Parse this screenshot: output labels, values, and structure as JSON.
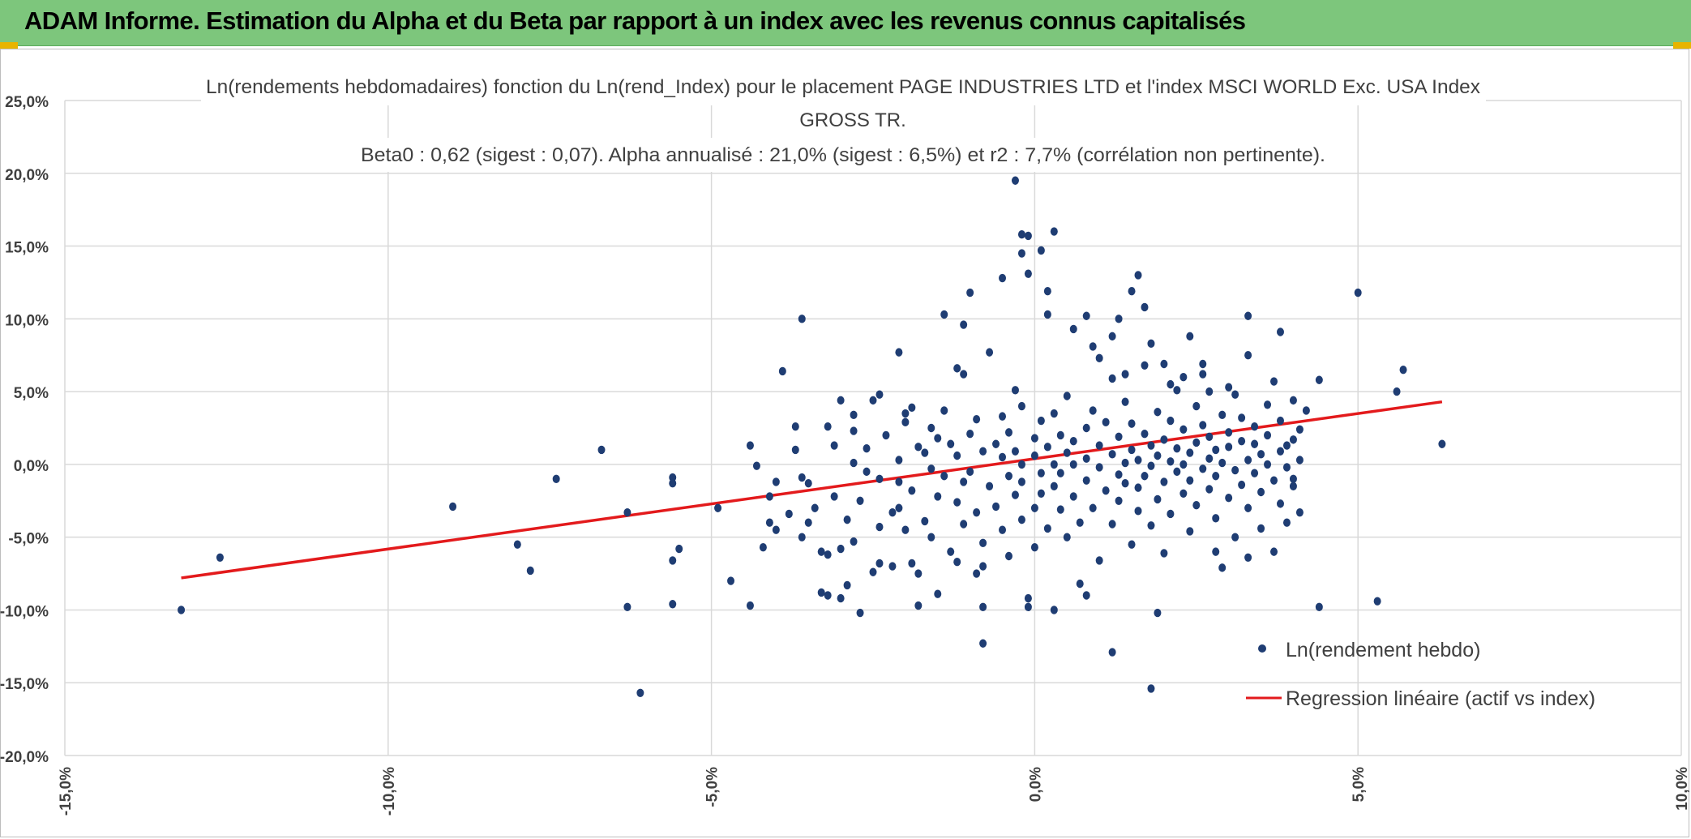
{
  "header": {
    "title": "ADAM Informe. Estimation du Alpha et du Beta par rapport à un index avec les revenus connus capitalisés"
  },
  "colors": {
    "header_bg": "#7dc67c",
    "point": "#1f3d73",
    "regression": "#e31a1c",
    "grid": "#d9d9d9",
    "accent": "#e8b400"
  },
  "chart_data": {
    "type": "scatter",
    "title_lines": [
      "Ln(rendements hebdomadaires) fonction du Ln(rend_Index) pour le placement PAGE INDUSTRIES LTD et l'index MSCI WORLD Exc. USA Index",
      "GROSS TR.",
      "Beta0 : 0,62 (sigest : 0,07). Alpha annualisé : 21,0% (sigest : 6,5%) et r2 : 7,7% (corrélation non pertinente)."
    ],
    "xlim": [
      -0.15,
      0.1
    ],
    "ylim": [
      -0.2,
      0.25
    ],
    "x_ticks": [
      "-15,0%",
      "-10,0%",
      "-5,0%",
      "0,0%",
      "5,0%",
      "10,0%"
    ],
    "y_ticks": [
      "25,0%",
      "20,0%",
      "15,0%",
      "10,0%",
      "5,0%",
      "0,0%",
      "-5,0%",
      "-10,0%",
      "-15,0%",
      "-20,0%"
    ],
    "grid": true,
    "legend_position": "bottom-right",
    "series": [
      {
        "name": "Ln(rendement hebdo)",
        "kind": "points",
        "points": [
          [
            -0.132,
            -0.1
          ],
          [
            -0.126,
            -0.064
          ],
          [
            -0.09,
            -0.029
          ],
          [
            -0.08,
            -0.055
          ],
          [
            -0.078,
            -0.073
          ],
          [
            -0.074,
            -0.01
          ],
          [
            -0.067,
            0.01
          ],
          [
            -0.063,
            -0.033
          ],
          [
            -0.063,
            -0.098
          ],
          [
            -0.061,
            -0.157
          ],
          [
            -0.056,
            -0.009
          ],
          [
            -0.056,
            -0.013
          ],
          [
            -0.056,
            -0.066
          ],
          [
            -0.056,
            -0.096
          ],
          [
            -0.055,
            -0.058
          ],
          [
            -0.049,
            -0.03
          ],
          [
            -0.047,
            -0.08
          ],
          [
            -0.044,
            -0.097
          ],
          [
            -0.044,
            0.013
          ],
          [
            -0.043,
            -0.001
          ],
          [
            -0.042,
            -0.057
          ],
          [
            -0.041,
            -0.04
          ],
          [
            -0.04,
            -0.045
          ],
          [
            -0.041,
            -0.022
          ],
          [
            -0.04,
            -0.012
          ],
          [
            -0.039,
            0.064
          ],
          [
            -0.038,
            -0.034
          ],
          [
            -0.037,
            0.01
          ],
          [
            -0.036,
            -0.009
          ],
          [
            -0.036,
            -0.05
          ],
          [
            -0.036,
            0.1
          ],
          [
            -0.035,
            -0.013
          ],
          [
            -0.035,
            -0.04
          ],
          [
            -0.034,
            -0.03
          ],
          [
            -0.033,
            -0.06
          ],
          [
            -0.033,
            -0.088
          ],
          [
            -0.032,
            0.026
          ],
          [
            -0.032,
            -0.062
          ],
          [
            -0.031,
            -0.022
          ],
          [
            -0.031,
            0.013
          ],
          [
            -0.03,
            -0.092
          ],
          [
            -0.03,
            -0.058
          ],
          [
            -0.029,
            -0.038
          ],
          [
            -0.028,
            0.001
          ],
          [
            -0.028,
            -0.053
          ],
          [
            -0.028,
            0.023
          ],
          [
            -0.027,
            -0.025
          ],
          [
            -0.027,
            -0.102
          ],
          [
            -0.026,
            0.011
          ],
          [
            -0.026,
            -0.005
          ],
          [
            -0.025,
            0.044
          ],
          [
            -0.024,
            -0.043
          ],
          [
            -0.024,
            -0.01
          ],
          [
            -0.024,
            -0.068
          ],
          [
            -0.023,
            0.02
          ],
          [
            -0.022,
            -0.033
          ],
          [
            -0.021,
            -0.012
          ],
          [
            -0.021,
            0.003
          ],
          [
            -0.021,
            -0.03
          ],
          [
            -0.02,
            0.029
          ],
          [
            -0.02,
            -0.045
          ],
          [
            -0.02,
            0.035
          ],
          [
            -0.019,
            -0.018
          ],
          [
            -0.019,
            0.039
          ],
          [
            -0.018,
            0.012
          ],
          [
            -0.018,
            -0.075
          ],
          [
            -0.017,
            -0.039
          ],
          [
            -0.017,
            0.008
          ],
          [
            -0.016,
            -0.003
          ],
          [
            -0.016,
            -0.05
          ],
          [
            -0.016,
            0.025
          ],
          [
            -0.015,
            0.018
          ],
          [
            -0.015,
            -0.022
          ],
          [
            -0.014,
            0.037
          ],
          [
            -0.014,
            -0.008
          ],
          [
            -0.013,
            0.014
          ],
          [
            -0.013,
            -0.06
          ],
          [
            -0.012,
            -0.026
          ],
          [
            -0.012,
            0.006
          ],
          [
            -0.012,
            0.066
          ],
          [
            -0.011,
            0.062
          ],
          [
            -0.011,
            -0.041
          ],
          [
            -0.011,
            -0.012
          ],
          [
            -0.01,
            0.021
          ],
          [
            -0.01,
            -0.005
          ],
          [
            -0.009,
            -0.033
          ],
          [
            -0.009,
            0.031
          ],
          [
            -0.008,
            -0.054
          ],
          [
            -0.008,
            0.009
          ],
          [
            -0.008,
            -0.07
          ],
          [
            -0.008,
            -0.098
          ],
          [
            -0.007,
            0.077
          ],
          [
            -0.007,
            -0.015
          ],
          [
            -0.006,
            0.014
          ],
          [
            -0.006,
            -0.029
          ],
          [
            -0.005,
            0.005
          ],
          [
            -0.005,
            -0.045
          ],
          [
            -0.005,
            0.033
          ],
          [
            -0.004,
            -0.063
          ],
          [
            -0.004,
            -0.008
          ],
          [
            -0.004,
            0.022
          ],
          [
            -0.003,
            -0.021
          ],
          [
            -0.003,
            0.009
          ],
          [
            -0.003,
            0.051
          ],
          [
            -0.002,
            -0.038
          ],
          [
            -0.002,
            0.0
          ],
          [
            -0.002,
            -0.012
          ],
          [
            -0.002,
            0.04
          ],
          [
            -0.001,
            -0.092
          ],
          [
            -0.001,
            -0.098
          ],
          [
            0.0,
            0.018
          ],
          [
            0.0,
            -0.03
          ],
          [
            0.0,
            0.006
          ],
          [
            0.0,
            -0.057
          ],
          [
            0.001,
            0.03
          ],
          [
            0.001,
            -0.006
          ],
          [
            0.001,
            -0.02
          ],
          [
            0.002,
            0.012
          ],
          [
            0.002,
            0.103
          ],
          [
            0.002,
            -0.044
          ],
          [
            0.003,
            0.0
          ],
          [
            0.003,
            0.035
          ],
          [
            0.003,
            -0.015
          ],
          [
            0.004,
            -0.031
          ],
          [
            0.004,
            0.02
          ],
          [
            0.004,
            -0.006
          ],
          [
            0.005,
            0.008
          ],
          [
            0.005,
            -0.05
          ],
          [
            0.005,
            0.047
          ],
          [
            0.006,
            0.016
          ],
          [
            0.006,
            -0.022
          ],
          [
            0.006,
            0.0
          ],
          [
            0.007,
            -0.04
          ],
          [
            0.007,
            -0.082
          ],
          [
            0.008,
            0.025
          ],
          [
            0.008,
            0.004
          ],
          [
            0.008,
            -0.011
          ],
          [
            0.009,
            0.037
          ],
          [
            0.009,
            -0.03
          ],
          [
            0.01,
            0.013
          ],
          [
            0.01,
            -0.002
          ],
          [
            0.01,
            -0.066
          ],
          [
            0.011,
            -0.018
          ],
          [
            0.011,
            0.029
          ],
          [
            0.012,
            0.007
          ],
          [
            0.012,
            -0.041
          ],
          [
            0.012,
            0.059
          ],
          [
            0.013,
            0.019
          ],
          [
            0.013,
            -0.007
          ],
          [
            0.013,
            -0.025
          ],
          [
            0.014,
            0.001
          ],
          [
            0.014,
            0.043
          ],
          [
            0.014,
            -0.013
          ],
          [
            0.015,
            -0.055
          ],
          [
            0.015,
            0.01
          ],
          [
            0.015,
            0.028
          ],
          [
            0.016,
            -0.032
          ],
          [
            0.016,
            0.003
          ],
          [
            0.016,
            -0.016
          ],
          [
            0.017,
            0.021
          ],
          [
            0.017,
            -0.008
          ],
          [
            0.017,
            0.068
          ],
          [
            0.018,
            -0.042
          ],
          [
            0.018,
            0.013
          ],
          [
            0.018,
            -0.001
          ],
          [
            0.019,
            -0.024
          ],
          [
            0.019,
            0.036
          ],
          [
            0.019,
            0.006
          ],
          [
            0.02,
            -0.012
          ],
          [
            0.02,
            0.017
          ],
          [
            0.02,
            -0.061
          ],
          [
            0.021,
            0.002
          ],
          [
            0.021,
            0.03
          ],
          [
            0.021,
            -0.034
          ],
          [
            0.022,
            -0.005
          ],
          [
            0.022,
            0.011
          ],
          [
            0.022,
            0.051
          ],
          [
            0.023,
            -0.02
          ],
          [
            0.023,
            0.024
          ],
          [
            0.023,
            0.0
          ],
          [
            0.024,
            -0.046
          ],
          [
            0.024,
            0.008
          ],
          [
            0.024,
            -0.011
          ],
          [
            0.025,
            0.04
          ],
          [
            0.025,
            0.015
          ],
          [
            0.025,
            -0.028
          ],
          [
            0.026,
            -0.003
          ],
          [
            0.026,
            0.027
          ],
          [
            0.026,
            0.062
          ],
          [
            0.027,
            0.004
          ],
          [
            0.027,
            -0.017
          ],
          [
            0.027,
            0.019
          ],
          [
            0.028,
            -0.037
          ],
          [
            0.028,
            0.01
          ],
          [
            0.028,
            -0.008
          ],
          [
            0.029,
            0.034
          ],
          [
            0.029,
            -0.071
          ],
          [
            0.029,
            0.001
          ],
          [
            0.03,
            0.022
          ],
          [
            0.03,
            -0.023
          ],
          [
            0.03,
            0.012
          ],
          [
            0.031,
            -0.004
          ],
          [
            0.031,
            0.048
          ],
          [
            0.031,
            -0.05
          ],
          [
            0.032,
            0.016
          ],
          [
            0.032,
            -0.014
          ],
          [
            0.032,
            0.032
          ],
          [
            0.033,
            0.003
          ],
          [
            0.033,
            -0.03
          ],
          [
            0.033,
            0.075
          ],
          [
            0.034,
            0.014
          ],
          [
            0.034,
            -0.006
          ],
          [
            0.034,
            0.026
          ],
          [
            0.035,
            -0.044
          ],
          [
            0.035,
            0.007
          ],
          [
            0.035,
            -0.019
          ],
          [
            0.036,
            0.041
          ],
          [
            0.036,
            0.0
          ],
          [
            0.036,
            0.02
          ],
          [
            0.037,
            -0.011
          ],
          [
            0.037,
            0.057
          ],
          [
            0.037,
            -0.06
          ],
          [
            0.038,
            0.009
          ],
          [
            0.038,
            -0.027
          ],
          [
            0.038,
            0.03
          ],
          [
            0.039,
            -0.002
          ],
          [
            0.039,
            0.013
          ],
          [
            0.039,
            -0.04
          ],
          [
            0.04,
            0.044
          ],
          [
            0.04,
            0.017
          ],
          [
            0.04,
            -0.015
          ],
          [
            0.041,
            0.003
          ],
          [
            0.041,
            0.024
          ],
          [
            0.041,
            -0.033
          ],
          [
            -0.002,
            0.158
          ],
          [
            -0.001,
            0.157
          ],
          [
            0.001,
            0.147
          ],
          [
            0.002,
            0.119
          ],
          [
            -0.001,
            0.131
          ],
          [
            0.003,
            0.16
          ],
          [
            0.008,
            0.102
          ],
          [
            0.006,
            0.093
          ],
          [
            0.012,
            0.088
          ],
          [
            0.013,
            0.1
          ],
          [
            0.015,
            0.119
          ],
          [
            0.016,
            0.13
          ],
          [
            0.017,
            0.108
          ],
          [
            0.02,
            0.069
          ],
          [
            0.021,
            0.055
          ],
          [
            0.024,
            0.088
          ],
          [
            0.026,
            0.069
          ],
          [
            0.033,
            0.102
          ],
          [
            0.038,
            0.091
          ],
          [
            0.042,
            0.037
          ],
          [
            0.044,
            0.058
          ],
          [
            0.05,
            0.118
          ],
          [
            0.057,
            0.065
          ],
          [
            0.056,
            0.05
          ],
          [
            0.063,
            0.014
          ],
          [
            0.053,
            -0.094
          ],
          [
            0.044,
            -0.098
          ],
          [
            0.04,
            -0.01
          ],
          [
            0.033,
            -0.064
          ],
          [
            0.028,
            -0.06
          ],
          [
            0.019,
            -0.102
          ],
          [
            0.018,
            -0.154
          ],
          [
            0.012,
            -0.129
          ],
          [
            0.008,
            -0.09
          ],
          [
            0.003,
            -0.1
          ],
          [
            -0.008,
            -0.123
          ],
          [
            -0.01,
            0.118
          ],
          [
            -0.005,
            0.128
          ],
          [
            -0.011,
            0.096
          ],
          [
            -0.014,
            0.103
          ],
          [
            -0.021,
            0.077
          ],
          [
            -0.024,
            0.048
          ],
          [
            -0.028,
            0.034
          ],
          [
            -0.03,
            0.044
          ],
          [
            -0.037,
            0.026
          ],
          [
            -0.003,
            0.195
          ],
          [
            -0.002,
            0.145
          ],
          [
            0.009,
            0.081
          ],
          [
            0.01,
            0.073
          ],
          [
            0.014,
            0.062
          ],
          [
            0.018,
            0.083
          ],
          [
            0.023,
            0.06
          ],
          [
            0.027,
            0.05
          ],
          [
            0.03,
            0.053
          ],
          [
            -0.018,
            -0.097
          ],
          [
            -0.015,
            -0.089
          ],
          [
            -0.009,
            -0.075
          ],
          [
            -0.012,
            -0.067
          ],
          [
            -0.019,
            -0.068
          ],
          [
            -0.022,
            -0.07
          ],
          [
            -0.025,
            -0.074
          ],
          [
            -0.029,
            -0.083
          ],
          [
            -0.032,
            -0.09
          ]
        ]
      },
      {
        "name": "Regression linéaire (actif vs index)",
        "kind": "line",
        "x1": -0.132,
        "y1": -0.078,
        "x2": 0.063,
        "y2": 0.043
      }
    ]
  }
}
